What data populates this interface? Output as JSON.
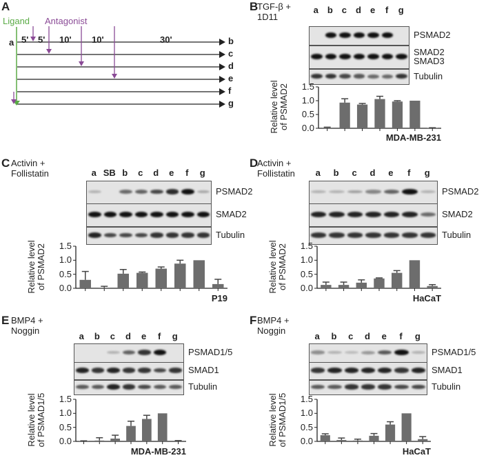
{
  "panel_a": {
    "label": "A",
    "ligand": "Ligand",
    "antagonist": "Antagonist",
    "times": [
      "5'",
      "5'",
      "10'",
      "10'",
      "30'"
    ],
    "start": "a",
    "rows": [
      "b",
      "c",
      "d",
      "e",
      "f",
      "g"
    ],
    "colors": {
      "ligand": "#5aab46",
      "antagonist": "#8a4a96"
    }
  },
  "chart_data": [
    {
      "type": "bar",
      "panel": "B",
      "condition": "TGF-β + 1D11",
      "cell_line": "MDA-MB-231",
      "categories": [
        "a",
        "b",
        "c",
        "d",
        "e",
        "f",
        "g"
      ],
      "values": [
        0.02,
        0.93,
        0.86,
        1.06,
        0.97,
        1.0,
        0.01
      ],
      "errors": [
        0.02,
        0.14,
        0.04,
        0.1,
        0.03,
        0,
        0.01
      ],
      "blot_rows": [
        "PSMAD2",
        "SMAD2\nSMAD3",
        "Tubulin"
      ],
      "ylabel": "Relative level of PSMAD2",
      "ylim": [
        0,
        1.5
      ],
      "yticks": [
        "0.0",
        "0.5",
        "1.0",
        "1.5"
      ]
    },
    {
      "type": "bar",
      "panel": "C",
      "condition": "Activin + Follistatin",
      "cell_line": "P19",
      "categories": [
        "a",
        "SB",
        "b",
        "c",
        "d",
        "e",
        "f",
        "g"
      ],
      "values": [
        0.3,
        0.02,
        0.52,
        0.55,
        0.7,
        0.88,
        1.0,
        0.15
      ],
      "errors": [
        0.3,
        0.05,
        0.15,
        0.03,
        0.06,
        0.12,
        0,
        0.17
      ],
      "blot_rows": [
        "PSMAD2",
        "SMAD2",
        "Tubulin"
      ],
      "ylabel": "Relative level of PSMAD2",
      "ylim": [
        0,
        1.5
      ],
      "yticks": [
        "0.0",
        "0.5",
        "1.0",
        "1.5"
      ]
    },
    {
      "type": "bar",
      "panel": "D",
      "condition": "Activin + Follistatin",
      "cell_line": "HaCaT",
      "categories": [
        "a",
        "b",
        "c",
        "d",
        "e",
        "f",
        "g"
      ],
      "values": [
        0.12,
        0.12,
        0.2,
        0.35,
        0.55,
        1.0,
        0.08
      ],
      "errors": [
        0.1,
        0.1,
        0.1,
        0.02,
        0.08,
        0,
        0.05
      ],
      "blot_rows": [
        "PSMAD2",
        "SMAD2",
        "Tubulin"
      ],
      "ylabel": "Relative level of PSMAD2",
      "ylim": [
        0,
        1.5
      ],
      "yticks": [
        "0.0",
        "0.5",
        "1.0",
        "1.5"
      ]
    },
    {
      "type": "bar",
      "panel": "E",
      "condition": "BMP4 + Noggin",
      "cell_line": "MDA-MB-231",
      "categories": [
        "a",
        "b",
        "c",
        "d",
        "e",
        "f",
        "g"
      ],
      "values": [
        0.01,
        0.03,
        0.1,
        0.55,
        0.8,
        1.0,
        0.02
      ],
      "errors": [
        0.01,
        0.1,
        0.12,
        0.17,
        0.13,
        0,
        0.01
      ],
      "blot_rows": [
        "PSMAD1/5",
        "SMAD1",
        "Tubulin"
      ],
      "ylabel": "Relative level of PSMAD1/5",
      "ylim": [
        0,
        1.5
      ],
      "yticks": [
        "0.0",
        "0.5",
        "1.0",
        "1.5"
      ]
    },
    {
      "type": "bar",
      "panel": "F",
      "condition": "BMP4 + Noggin",
      "cell_line": "HaCaT",
      "categories": [
        "a",
        "b",
        "c",
        "d",
        "e",
        "f",
        "g"
      ],
      "values": [
        0.22,
        0.05,
        0.03,
        0.2,
        0.6,
        1.0,
        0.08
      ],
      "errors": [
        0.05,
        0.07,
        0.05,
        0.08,
        0.1,
        0,
        0.09
      ],
      "blot_rows": [
        "PSMAD1/5",
        "SMAD1",
        "Tubulin"
      ],
      "ylabel": "Relative level of PSMAD1/5",
      "ylim": [
        0,
        1.5
      ],
      "yticks": [
        "0.0",
        "0.5",
        "1.0",
        "1.5"
      ]
    }
  ]
}
